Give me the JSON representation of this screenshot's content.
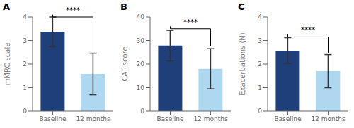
{
  "chart_data": [
    {
      "type": "bar",
      "title": "A",
      "categories": [
        "Baseline",
        "12 months"
      ],
      "values": [
        3.37,
        1.58
      ],
      "errors": [
        0.63,
        0.88
      ],
      "colors": [
        "#1F3F7A",
        "#ADD8F0"
      ],
      "y_label": "mMRC scale",
      "ylim": [
        0,
        4
      ],
      "yticks": [
        0,
        1,
        2,
        3,
        4
      ],
      "annotations": [
        {
          "text": "****",
          "y_start": 4.0,
          "y_end": 2.5
        }
      ]
    },
    {
      "type": "bar",
      "title": "B",
      "categories": [
        "Baseline",
        "12 months"
      ],
      "values": [
        27.8,
        18.0
      ],
      "errors": [
        6.5,
        8.5
      ],
      "colors": [
        "#1F3F7A",
        "#ADD8F0"
      ],
      "y_label": "CAT score",
      "ylim": [
        0,
        40
      ],
      "yticks": [
        0,
        10,
        20,
        30,
        40
      ],
      "annotations": [
        {
          "text": "****",
          "y_start": 35.0,
          "y_end": 27.5
        }
      ]
    },
    {
      "type": "bar",
      "title": "C",
      "categories": [
        "Baseline",
        "12 months"
      ],
      "values": [
        2.57,
        1.7
      ],
      "errors": [
        0.55,
        0.7
      ],
      "colors": [
        "#1F3F7A",
        "#ADD8F0"
      ],
      "y_label": "Exacerbations (N)",
      "ylim": [
        0,
        4
      ],
      "yticks": [
        0,
        1,
        2,
        3,
        4
      ],
      "annotations": [
        {
          "text": "****",
          "y_start": 3.15,
          "y_end": 2.45
        }
      ]
    }
  ]
}
